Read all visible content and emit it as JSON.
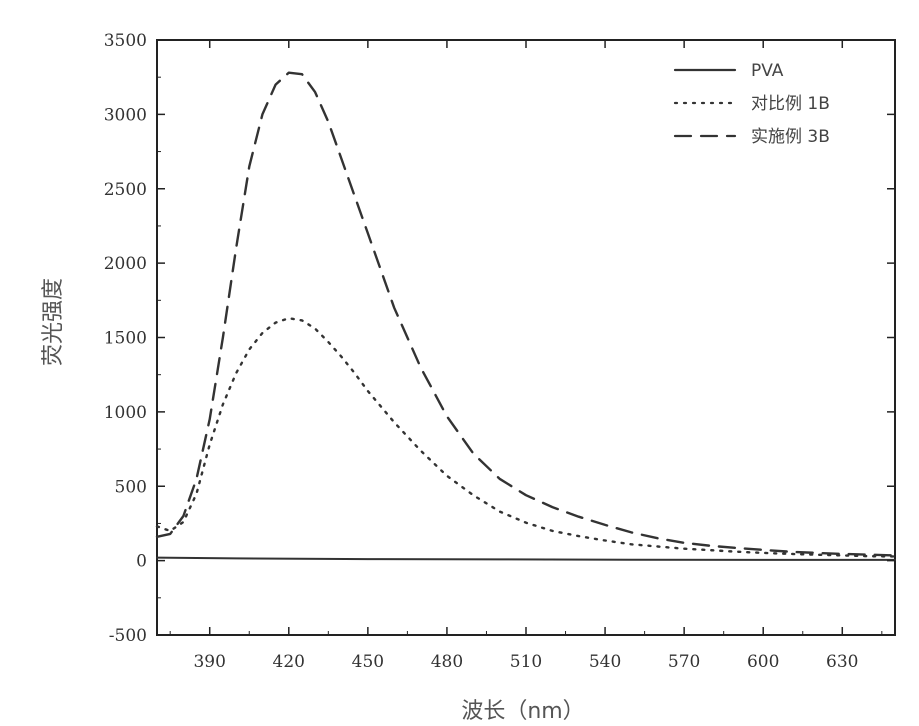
{
  "chart_data": {
    "type": "line",
    "title": "",
    "xlabel": "波长（nm）",
    "ylabel": "荧光强度",
    "xlim": [
      370,
      650
    ],
    "ylim": [
      -500,
      3500
    ],
    "x_ticks": [
      390,
      420,
      450,
      480,
      510,
      540,
      570,
      600,
      630
    ],
    "y_ticks": [
      -500,
      0,
      500,
      1000,
      1500,
      2000,
      2500,
      3000,
      3500
    ],
    "x_tick_labels": [
      "390",
      "420",
      "450",
      "480",
      "510",
      "540",
      "570",
      "600",
      "630"
    ],
    "y_tick_labels": [
      "-500",
      "0",
      "500",
      "1000",
      "1500",
      "2000",
      "2500",
      "3000",
      "3500"
    ],
    "grid": false,
    "legend_position": "top-right",
    "series": [
      {
        "name": "PVA",
        "style": "solid",
        "x": [
          370,
          400,
          450,
          500,
          550,
          600,
          650
        ],
        "y": [
          20,
          15,
          10,
          8,
          6,
          5,
          5
        ]
      },
      {
        "name": "对比例 1B",
        "style": "dotted",
        "x": [
          370,
          375,
          380,
          385,
          390,
          395,
          400,
          405,
          410,
          415,
          420,
          425,
          430,
          435,
          440,
          445,
          450,
          460,
          470,
          480,
          490,
          500,
          510,
          520,
          530,
          540,
          550,
          560,
          570,
          580,
          590,
          600,
          610,
          620,
          630,
          640,
          650
        ],
        "y": [
          230,
          200,
          260,
          450,
          780,
          1050,
          1260,
          1420,
          1530,
          1600,
          1630,
          1615,
          1560,
          1470,
          1370,
          1260,
          1140,
          930,
          740,
          570,
          440,
          330,
          255,
          200,
          165,
          135,
          110,
          95,
          80,
          70,
          60,
          52,
          45,
          40,
          35,
          30,
          28
        ]
      },
      {
        "name": "实施例 3B",
        "style": "dashed",
        "x": [
          370,
          375,
          380,
          385,
          390,
          395,
          400,
          405,
          410,
          415,
          420,
          425,
          430,
          435,
          440,
          445,
          450,
          460,
          470,
          480,
          490,
          500,
          510,
          520,
          530,
          540,
          550,
          560,
          570,
          580,
          590,
          600,
          610,
          620,
          630,
          640,
          650
        ],
        "y": [
          160,
          180,
          300,
          550,
          950,
          1500,
          2100,
          2650,
          3000,
          3200,
          3280,
          3270,
          3150,
          2950,
          2700,
          2450,
          2200,
          1700,
          1300,
          970,
          720,
          550,
          440,
          360,
          295,
          240,
          190,
          150,
          120,
          100,
          85,
          72,
          60,
          52,
          45,
          40,
          35
        ]
      }
    ]
  }
}
